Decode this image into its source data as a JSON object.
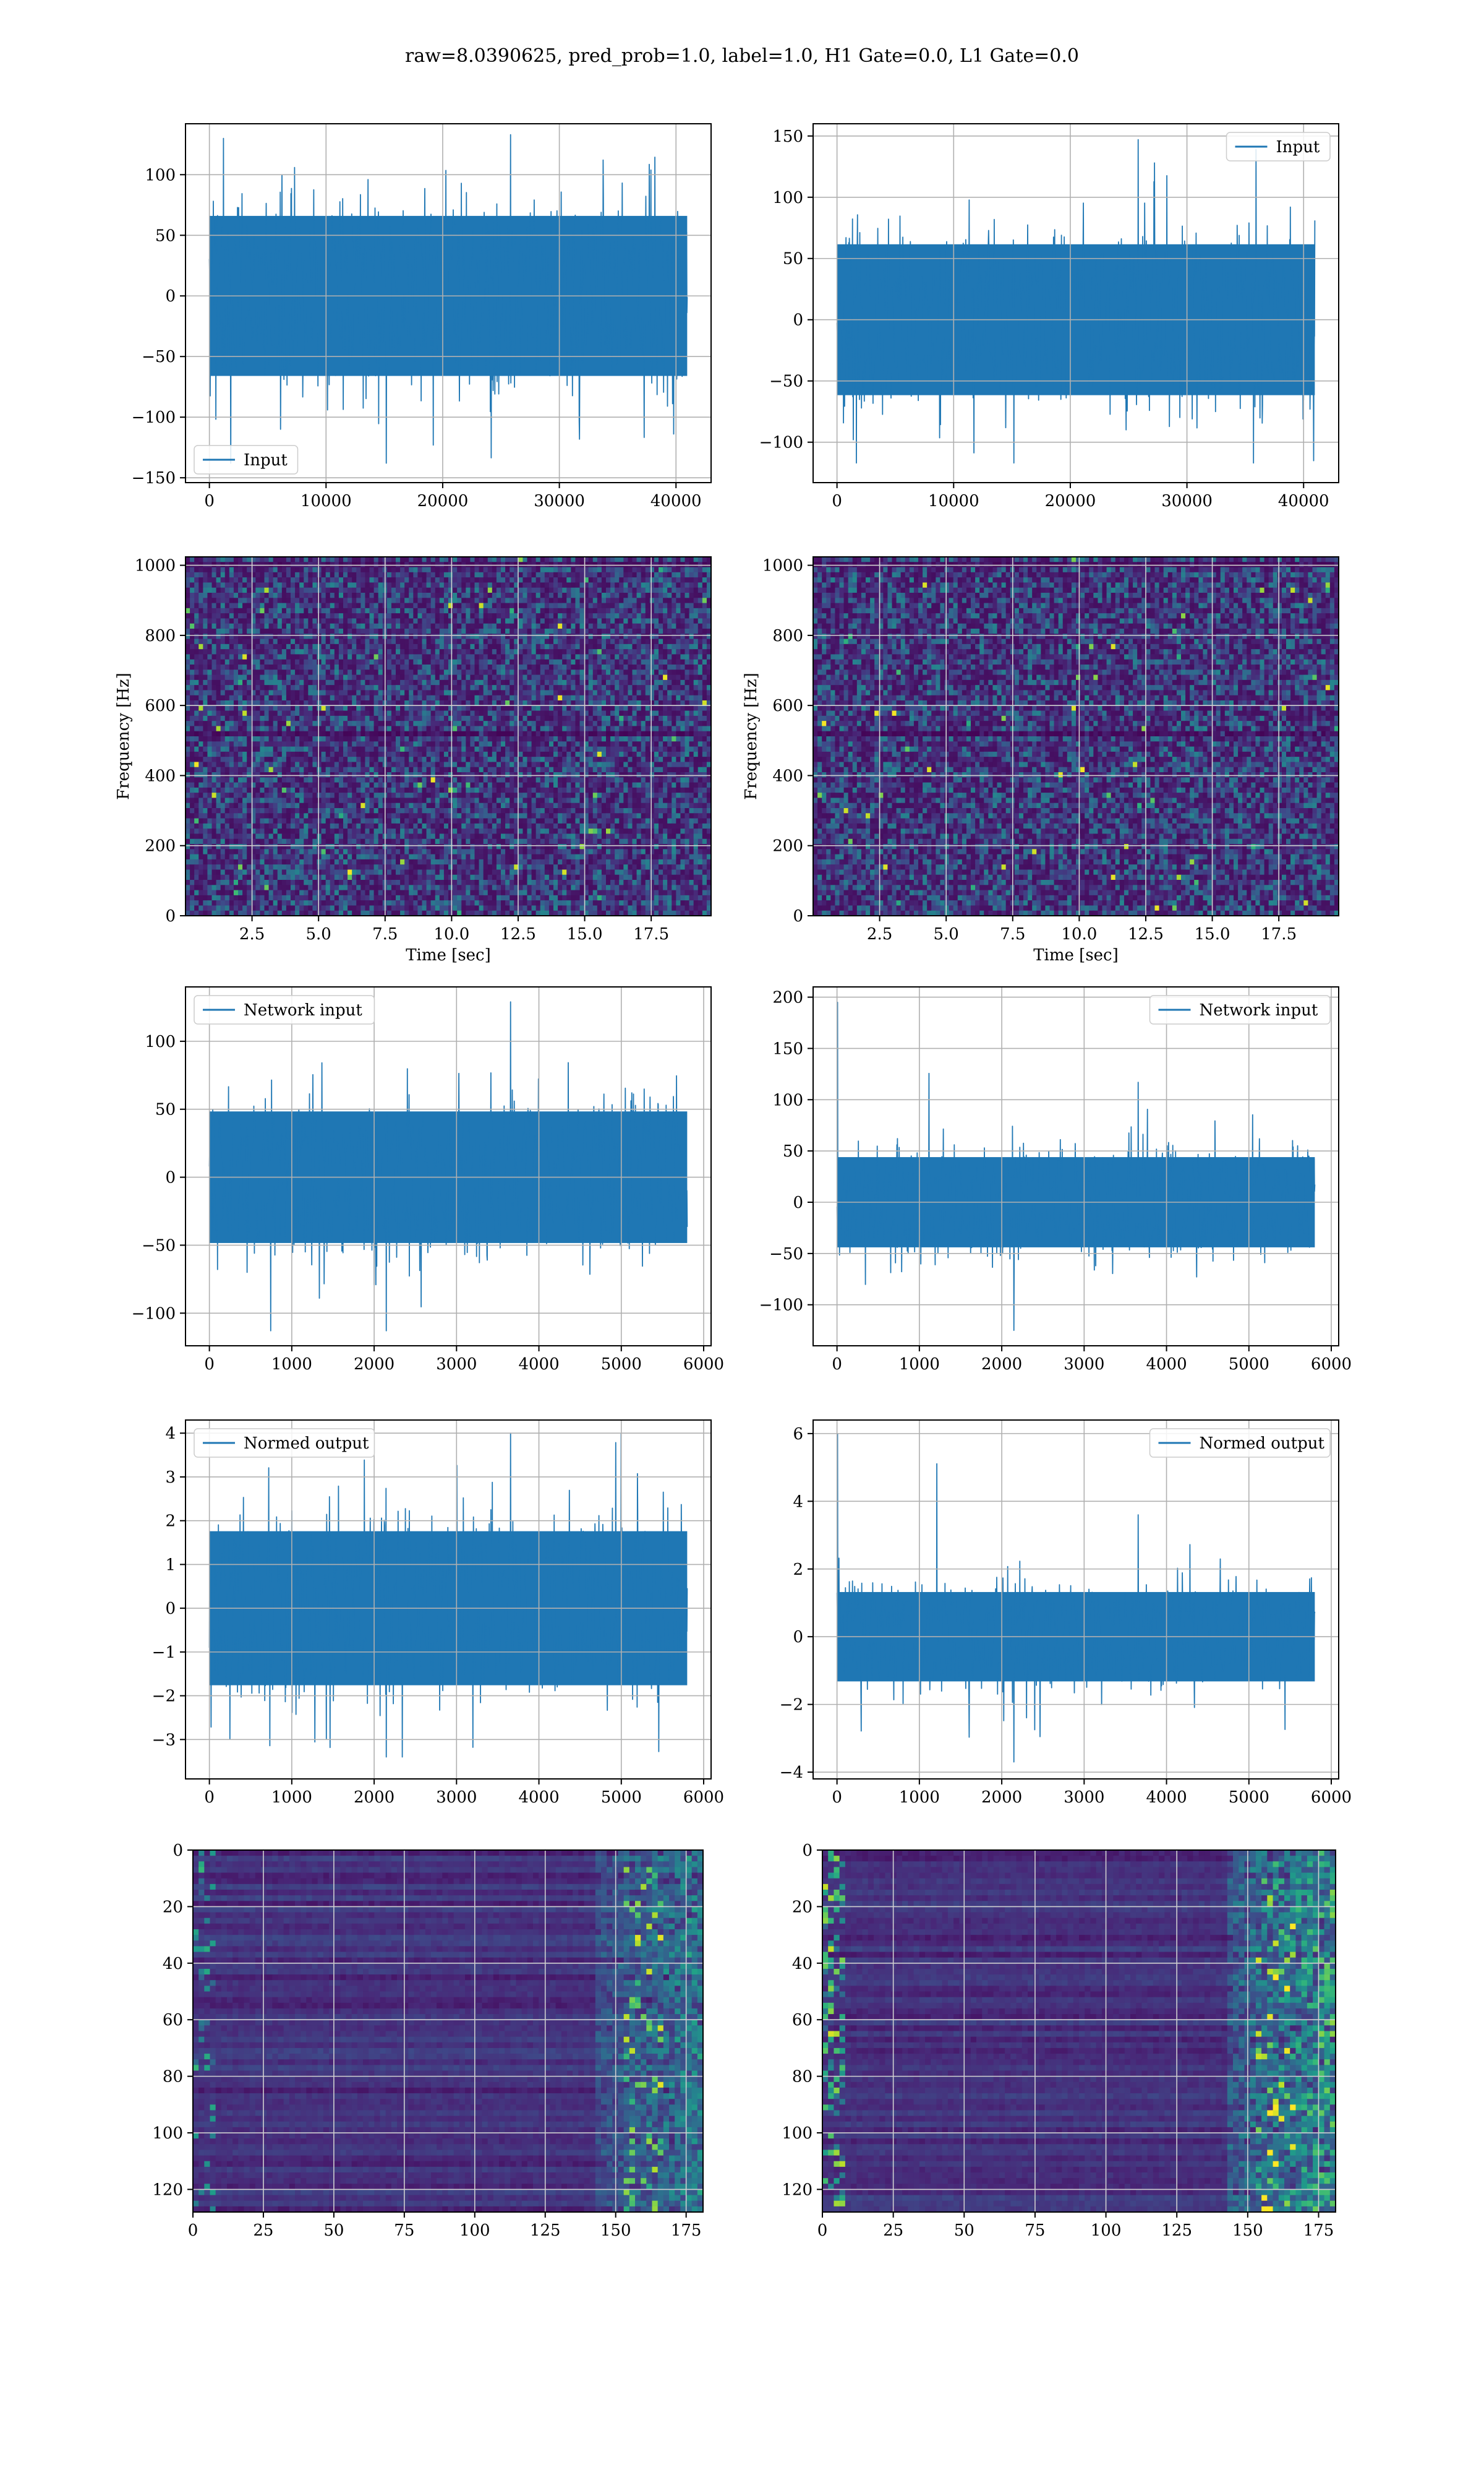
{
  "figure": {
    "suptitle": "raw=8.0390625, pred_prob=1.0, label=1.0, H1 Gate=0.0, L1 Gate=0.0",
    "colors": {
      "line": "#1f77b4",
      "grid": "#b0b0b0",
      "spine": "#000000",
      "viridis_dark": "#440154",
      "viridis_mid": "#21918c",
      "viridis_bright": "#fde725"
    }
  },
  "chart_data": [
    {
      "id": "h1_input",
      "type": "line",
      "series": [
        {
          "name": "Input"
        }
      ],
      "legend": "lower-left",
      "xlim": [
        -2048,
        43008
      ],
      "ylim": [
        -154,
        142
      ],
      "xticks": [
        0,
        10000,
        20000,
        30000,
        40000
      ],
      "yticks": [
        -150,
        -100,
        -50,
        0,
        50,
        100
      ],
      "signal": {
        "n": 40960,
        "x_start": 0,
        "x_end": 40960,
        "body_amplitude": 75,
        "min": -138,
        "max": 133
      },
      "xlabel": "",
      "ylabel": "",
      "grid": true
    },
    {
      "id": "l1_input",
      "type": "line",
      "series": [
        {
          "name": "Input"
        }
      ],
      "legend": "upper-right",
      "xlim": [
        -2048,
        43008
      ],
      "ylim": [
        -133,
        160
      ],
      "xticks": [
        0,
        10000,
        20000,
        30000,
        40000
      ],
      "yticks": [
        -100,
        -50,
        0,
        50,
        100,
        150
      ],
      "signal": {
        "n": 40960,
        "x_start": 0,
        "x_end": 40960,
        "body_amplitude": 70,
        "min": -117,
        "max": 147
      },
      "xlabel": "",
      "ylabel": "",
      "grid": true
    },
    {
      "id": "h1_spectrogram",
      "type": "heatmap",
      "colormap": "viridis",
      "xlim": [
        0,
        19.75
      ],
      "ylim": [
        0,
        1024
      ],
      "xticks": [
        2.5,
        5.0,
        7.5,
        10.0,
        12.5,
        15.0,
        17.5
      ],
      "yticks": [
        0,
        200,
        400,
        600,
        800,
        1000
      ],
      "xtick_labels": [
        "2.5",
        "5.0",
        "7.5",
        "10.0",
        "12.5",
        "15.0",
        "17.5"
      ],
      "xlabel": "Time [sec]",
      "ylabel": "Frequency [Hz]",
      "grid": true
    },
    {
      "id": "l1_spectrogram",
      "type": "heatmap",
      "colormap": "viridis",
      "xlim": [
        0,
        19.75
      ],
      "ylim": [
        0,
        1024
      ],
      "xticks": [
        2.5,
        5.0,
        7.5,
        10.0,
        12.5,
        15.0,
        17.5
      ],
      "yticks": [
        0,
        200,
        400,
        600,
        800,
        1000
      ],
      "xtick_labels": [
        "2.5",
        "5.0",
        "7.5",
        "10.0",
        "12.5",
        "15.0",
        "17.5"
      ],
      "xlabel": "Time [sec]",
      "ylabel": "Frequency [Hz]",
      "grid": true
    },
    {
      "id": "h1_network_input",
      "type": "line",
      "series": [
        {
          "name": "Network input"
        }
      ],
      "legend": "upper-left",
      "xlim": [
        -290,
        6090
      ],
      "ylim": [
        -124,
        140
      ],
      "xticks": [
        0,
        1000,
        2000,
        3000,
        4000,
        5000,
        6000
      ],
      "yticks": [
        -100,
        -50,
        0,
        50,
        100
      ],
      "signal": {
        "n": 5800,
        "x_start": 0,
        "x_end": 5800,
        "body_amplitude": 55,
        "min": -113,
        "max": 129
      },
      "xlabel": "",
      "ylabel": "",
      "grid": true
    },
    {
      "id": "l1_network_input",
      "type": "line",
      "series": [
        {
          "name": "Network input"
        }
      ],
      "legend": "upper-right",
      "xlim": [
        -290,
        6090
      ],
      "ylim": [
        -140,
        210
      ],
      "xticks": [
        0,
        1000,
        2000,
        3000,
        4000,
        5000,
        6000
      ],
      "yticks": [
        -100,
        -50,
        0,
        50,
        100,
        150,
        200
      ],
      "signal": {
        "n": 5800,
        "x_start": 0,
        "x_end": 5800,
        "body_amplitude": 50,
        "min": -125,
        "max": 195,
        "spike_at_start": 195
      },
      "xlabel": "",
      "ylabel": "",
      "grid": true
    },
    {
      "id": "h1_normed_output",
      "type": "line",
      "series": [
        {
          "name": "Normed output"
        }
      ],
      "legend": "upper-left",
      "xlim": [
        -290,
        6090
      ],
      "ylim": [
        -3.9,
        4.3
      ],
      "xticks": [
        0,
        1000,
        2000,
        3000,
        4000,
        5000,
        6000
      ],
      "yticks": [
        -3,
        -2,
        -1,
        0,
        1,
        2,
        3,
        4
      ],
      "signal": {
        "n": 5800,
        "x_start": 0,
        "x_end": 5800,
        "body_amplitude": 2.0,
        "min": -3.4,
        "max": 4.0
      },
      "xlabel": "",
      "ylabel": "",
      "grid": true
    },
    {
      "id": "l1_normed_output",
      "type": "line",
      "series": [
        {
          "name": "Normed output"
        }
      ],
      "legend": "upper-right",
      "xlim": [
        -290,
        6090
      ],
      "ylim": [
        -4.2,
        6.4
      ],
      "xticks": [
        0,
        1000,
        2000,
        3000,
        4000,
        5000,
        6000
      ],
      "yticks": [
        -4,
        -2,
        0,
        2,
        4,
        6
      ],
      "signal": {
        "n": 5800,
        "x_start": 0,
        "x_end": 5800,
        "body_amplitude": 1.5,
        "min": -3.7,
        "max": 6.0,
        "spike_at_start": 6.0
      },
      "xlabel": "",
      "ylabel": "",
      "grid": true
    },
    {
      "id": "h1_features",
      "type": "heatmap",
      "colormap": "viridis",
      "xlim": [
        0,
        181
      ],
      "ylim": [
        128,
        0
      ],
      "origin": "upper",
      "xticks": [
        0,
        25,
        50,
        75,
        100,
        125,
        150,
        175
      ],
      "yticks": [
        0,
        20,
        40,
        60,
        80,
        100,
        120
      ],
      "xlabel": "",
      "ylabel": "",
      "grid": true
    },
    {
      "id": "l1_features",
      "type": "heatmap",
      "colormap": "viridis",
      "xlim": [
        0,
        181
      ],
      "ylim": [
        128,
        0
      ],
      "origin": "upper",
      "xticks": [
        0,
        25,
        50,
        75,
        100,
        125,
        150,
        175
      ],
      "yticks": [
        0,
        20,
        40,
        60,
        80,
        100,
        120
      ],
      "xlabel": "",
      "ylabel": "",
      "grid": true
    }
  ]
}
